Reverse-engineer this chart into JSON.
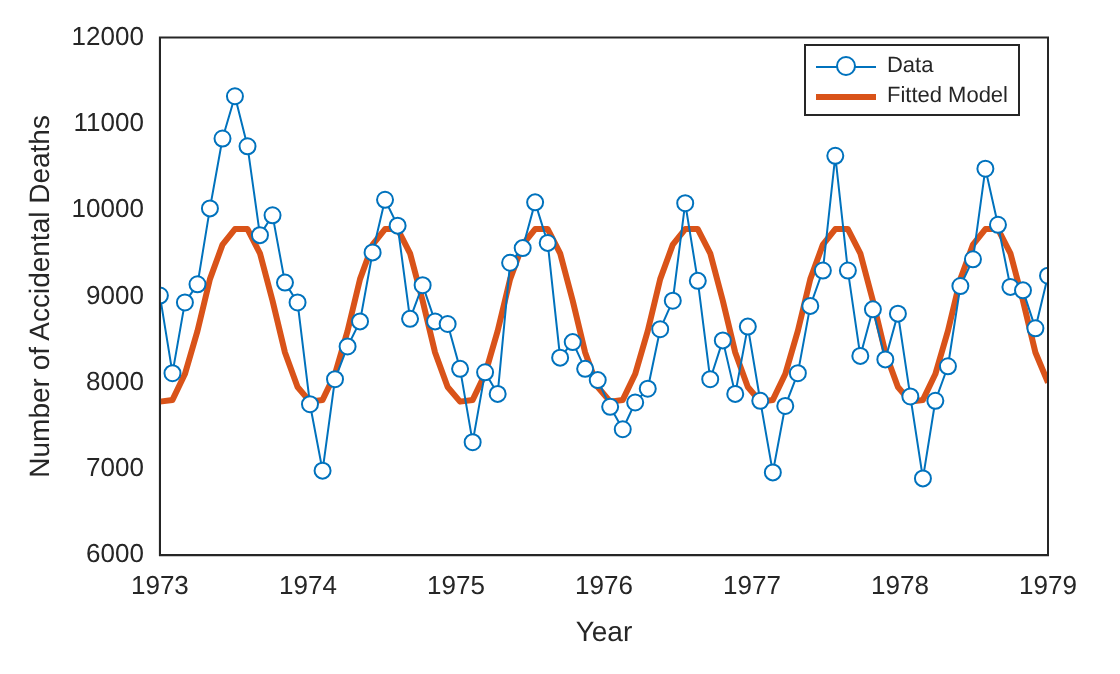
{
  "chart_data": {
    "type": "line",
    "xlabel": "Year",
    "ylabel": "Number of Accidental Deaths",
    "x": [
      1973,
      1973.085,
      1973.169,
      1973.254,
      1973.338,
      1973.423,
      1973.507,
      1973.592,
      1973.676,
      1973.761,
      1973.845,
      1973.93,
      1974.014,
      1974.099,
      1974.183,
      1974.268,
      1974.352,
      1974.437,
      1974.521,
      1974.606,
      1974.69,
      1974.775,
      1974.859,
      1974.944,
      1975.028,
      1975.113,
      1975.197,
      1975.282,
      1975.366,
      1975.451,
      1975.535,
      1975.62,
      1975.704,
      1975.789,
      1975.873,
      1975.958,
      1976.042,
      1976.127,
      1976.211,
      1976.296,
      1976.38,
      1976.465,
      1976.549,
      1976.634,
      1976.718,
      1976.803,
      1976.887,
      1976.972,
      1977.056,
      1977.141,
      1977.225,
      1977.31,
      1977.394,
      1977.479,
      1977.563,
      1977.648,
      1977.732,
      1977.817,
      1977.901,
      1977.986,
      1978.07,
      1978.155,
      1978.239,
      1978.324,
      1978.408,
      1978.493,
      1978.577,
      1978.662,
      1978.746,
      1978.831,
      1978.915,
      1979
    ],
    "series": [
      {
        "name": "Data",
        "color": "#0072bd",
        "marker": "circle",
        "values": [
          9010,
          8110,
          8930,
          9140,
          10020,
          10830,
          11320,
          10740,
          9710,
          9940,
          9160,
          8930,
          7750,
          6980,
          8040,
          8420,
          8710,
          9510,
          10120,
          9820,
          8740,
          9130,
          8710,
          8680,
          8160,
          7310,
          8120,
          7870,
          9390,
          9560,
          10090,
          9620,
          8290,
          8470,
          8160,
          8030,
          7720,
          7460,
          7770,
          7930,
          8620,
          8950,
          10080,
          9180,
          8040,
          8490,
          7870,
          8650,
          7790,
          6960,
          7730,
          8110,
          8890,
          9300,
          10630,
          9300,
          8310,
          8850,
          8270,
          8800,
          7840,
          6890,
          7790,
          8190,
          9120,
          9430,
          10480,
          9830,
          9110,
          9070,
          8630,
          9240
        ]
      },
      {
        "name": "Fitted Model",
        "color": "#d95319",
        "marker": "none",
        "values": [
          7780,
          7800,
          8100,
          8600,
          9200,
          9600,
          9780,
          9780,
          9500,
          8950,
          8350,
          7950,
          7780,
          7800,
          8100,
          8600,
          9200,
          9600,
          9780,
          9780,
          9500,
          8950,
          8350,
          7950,
          7780,
          7800,
          8100,
          8600,
          9200,
          9600,
          9780,
          9780,
          9500,
          8950,
          8350,
          7950,
          7780,
          7800,
          8100,
          8600,
          9200,
          9600,
          9780,
          9780,
          9500,
          8950,
          8350,
          7950,
          7780,
          7800,
          8100,
          8600,
          9200,
          9600,
          9780,
          9780,
          9500,
          8950,
          8350,
          7950,
          7780,
          7800,
          8100,
          8600,
          9200,
          9600,
          9780,
          9780,
          9500,
          8950,
          8350,
          8000
        ]
      }
    ],
    "xlim": [
      1973,
      1979
    ],
    "xticks": [
      1973,
      1974,
      1975,
      1976,
      1977,
      1978,
      1979
    ],
    "ylim": [
      6000,
      12000
    ],
    "yticks": [
      6000,
      7000,
      8000,
      9000,
      10000,
      11000,
      12000
    ],
    "grid": false,
    "legend": "top right",
    "line_style": "solid"
  }
}
